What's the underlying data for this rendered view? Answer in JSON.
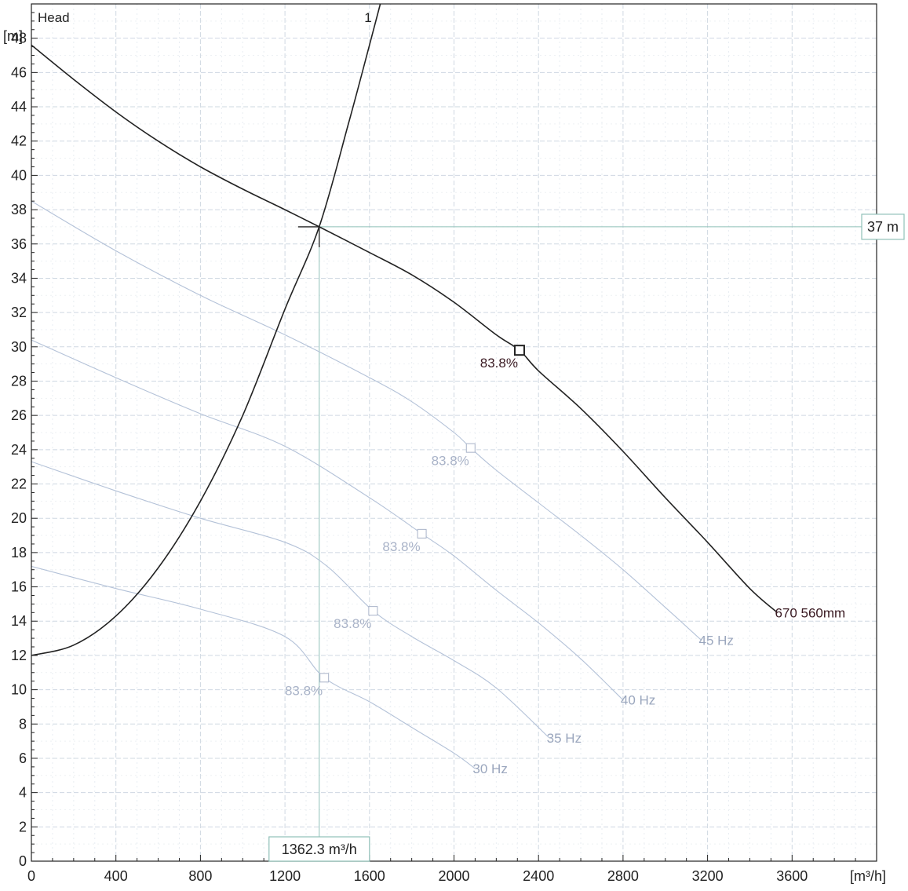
{
  "chart_data": {
    "type": "line",
    "title": "Head",
    "curve_number_label": "1",
    "xunit": "[m³/h]",
    "yunit": "[m]",
    "xlim": [
      0,
      4000
    ],
    "ylim": [
      0,
      50
    ],
    "xticks": [
      0,
      400,
      800,
      1200,
      1600,
      2000,
      2400,
      2800,
      3200,
      3600
    ],
    "yticks": [
      0,
      2,
      4,
      6,
      8,
      10,
      12,
      14,
      16,
      18,
      20,
      22,
      24,
      26,
      28,
      30,
      32,
      34,
      36,
      38,
      40,
      42,
      44,
      46,
      48
    ],
    "grid": true,
    "series": [
      {
        "name": "670 560mm",
        "role": "pump",
        "color": "#222222",
        "x": [
          0,
          200,
          400,
          600,
          800,
          1000,
          1200,
          1362,
          1600,
          1800,
          2000,
          2200,
          2310,
          2400,
          2600,
          2800,
          3000,
          3200,
          3400,
          3530
        ],
        "y": [
          47.6,
          45.6,
          43.7,
          42.0,
          40.5,
          39.2,
          38.0,
          37.0,
          35.5,
          34.2,
          32.6,
          30.7,
          29.8,
          28.6,
          26.4,
          23.9,
          21.2,
          18.6,
          15.9,
          14.5
        ]
      },
      {
        "name": "45 Hz",
        "role": "speed",
        "color": "#b4c2d8",
        "x": [
          0,
          400,
          800,
          1200,
          1600,
          1800,
          2000,
          2079,
          2200,
          2400,
          2600,
          2800,
          3000,
          3170
        ],
        "y": [
          38.5,
          35.6,
          33.0,
          30.7,
          28.2,
          26.8,
          25.0,
          24.1,
          22.8,
          20.9,
          19.0,
          17.0,
          14.8,
          12.9
        ]
      },
      {
        "name": "40 Hz",
        "role": "speed",
        "color": "#b4c2d8",
        "x": [
          0,
          400,
          800,
          1200,
          1600,
          1848,
          2000,
          2200,
          2400,
          2600,
          2800
        ],
        "y": [
          30.4,
          28.2,
          26.1,
          24.2,
          21.2,
          19.1,
          17.8,
          15.8,
          13.9,
          11.8,
          9.4
        ]
      },
      {
        "name": "35 Hz",
        "role": "speed",
        "color": "#b4c2d8",
        "x": [
          0,
          400,
          800,
          1200,
          1400,
          1617,
          1800,
          2000,
          2200,
          2450
        ],
        "y": [
          23.3,
          21.6,
          20.0,
          18.6,
          17.2,
          14.6,
          13.1,
          11.7,
          10.1,
          7.2
        ]
      },
      {
        "name": "30 Hz",
        "role": "speed",
        "color": "#b4c2d8",
        "x": [
          0,
          400,
          800,
          1200,
          1386,
          1600,
          1800,
          2000,
          2100
        ],
        "y": [
          17.2,
          15.9,
          14.7,
          13.1,
          10.7,
          9.3,
          7.8,
          6.3,
          5.4
        ]
      },
      {
        "name": "1",
        "role": "system",
        "color": "#222222",
        "x": [
          0,
          200,
          400,
          600,
          800,
          1000,
          1200,
          1362,
          1500,
          1600,
          1700
        ],
        "y": [
          12.0,
          12.6,
          14.3,
          17.1,
          21.0,
          26.0,
          32.2,
          37.0,
          43.0,
          47.6,
          52.3
        ]
      }
    ],
    "efficiency_markers": [
      {
        "x": 2310,
        "y": 29.8,
        "label": "83.8%",
        "emphasis": true
      },
      {
        "x": 2079,
        "y": 24.1,
        "label": "83.8%",
        "emphasis": false
      },
      {
        "x": 1848,
        "y": 19.1,
        "label": "83.8%",
        "emphasis": false
      },
      {
        "x": 1617,
        "y": 14.6,
        "label": "83.8%",
        "emphasis": false
      },
      {
        "x": 1386,
        "y": 10.7,
        "label": "83.8%",
        "emphasis": false
      }
    ],
    "operating_point": {
      "x": 1362.3,
      "y": 37,
      "x_label": "1362.3 m³/h",
      "y_label": "37 m",
      "guide_color": "#8fc0b8"
    }
  }
}
